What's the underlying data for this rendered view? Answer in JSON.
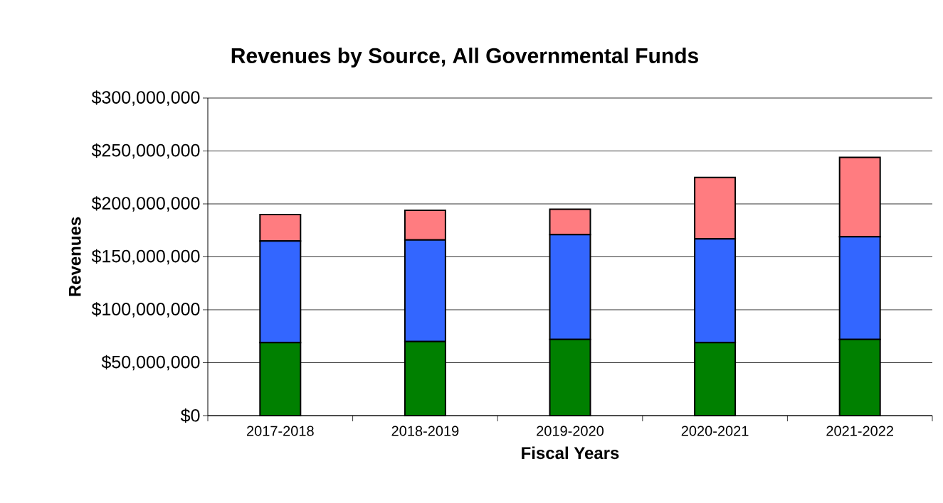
{
  "chart_data": {
    "type": "bar",
    "stacked": true,
    "title": "Revenues by Source, All Governmental Funds",
    "xlabel": "Fiscal Years",
    "ylabel": "Revenues",
    "categories": [
      "2017-2018",
      "2018-2019",
      "2019-2020",
      "2020-2021",
      "2021-2022"
    ],
    "series": [
      {
        "color": "#008000",
        "values": [
          69000000,
          70000000,
          72000000,
          69000000,
          72000000
        ]
      },
      {
        "color": "#3366ff",
        "values": [
          96000000,
          96000000,
          99000000,
          98000000,
          97000000
        ]
      },
      {
        "color": "#ff7c80",
        "values": [
          25000000,
          28000000,
          24000000,
          58000000,
          75000000
        ]
      }
    ],
    "ylim": [
      0,
      300000000
    ],
    "yticks": [
      {
        "value": 0,
        "label": "$0"
      },
      {
        "value": 50000000,
        "label": "$50,000,000"
      },
      {
        "value": 100000000,
        "label": "$100,000,000"
      },
      {
        "value": 150000000,
        "label": "$150,000,000"
      },
      {
        "value": 200000000,
        "label": "$200,000,000"
      },
      {
        "value": 250000000,
        "label": "$250,000,000"
      },
      {
        "value": 300000000,
        "label": "$300,000,000"
      }
    ],
    "grid": "y"
  }
}
